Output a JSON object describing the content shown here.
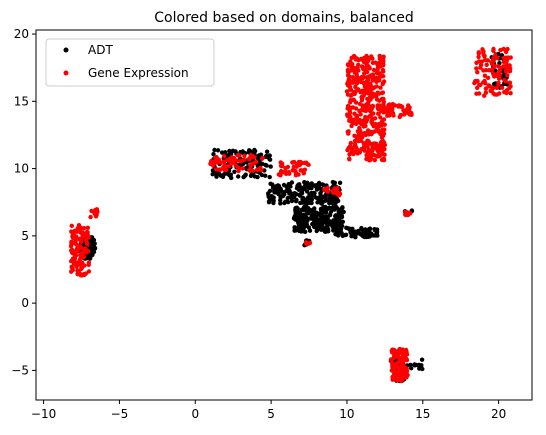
{
  "chart_data": {
    "type": "scatter",
    "title": "Colored based on domains, balanced",
    "xlabel": "",
    "ylabel": "",
    "xlim": [
      -10.5,
      22.2
    ],
    "ylim": [
      -7.2,
      20.3
    ],
    "x_ticks": [
      -10,
      -5,
      0,
      5,
      10,
      15,
      20
    ],
    "y_ticks": [
      -5,
      0,
      5,
      10,
      15,
      20
    ],
    "grid": false,
    "legend_position": "top-left",
    "series": [
      {
        "name": "ADT",
        "color": "#000000",
        "clusters": [
          {
            "x": [
              -7.6,
              -6.6
            ],
            "y": [
              3.3,
              4.9
            ],
            "n": 90
          },
          {
            "x": [
              1.1,
              5.0
            ],
            "y": [
              9.3,
              11.4
            ],
            "n": 120
          },
          {
            "x": [
              4.8,
              9.6
            ],
            "y": [
              7.4,
              9.0
            ],
            "n": 200
          },
          {
            "x": [
              6.5,
              9.8
            ],
            "y": [
              5.3,
              7.2
            ],
            "n": 240
          },
          {
            "x": [
              9.2,
              12.0
            ],
            "y": [
              4.9,
              5.6
            ],
            "n": 80
          },
          {
            "x": [
              7.2,
              7.6
            ],
            "y": [
              4.3,
              4.7
            ],
            "n": 10
          },
          {
            "x": [
              12.8,
              15.0
            ],
            "y": [
              -4.9,
              -4.1
            ],
            "n": 40
          },
          {
            "x": [
              13.0,
              13.8
            ],
            "y": [
              -5.8,
              -4.2
            ],
            "n": 30
          },
          {
            "x": [
              13.8,
              14.3
            ],
            "y": [
              6.6,
              6.9
            ],
            "n": 8
          },
          {
            "x": [
              19.5,
              20.6
            ],
            "y": [
              16.0,
              18.6
            ],
            "n": 40
          }
        ]
      },
      {
        "name": "Gene Expression",
        "color": "#ff0000",
        "clusters": [
          {
            "x": [
              -8.2,
              -7.0
            ],
            "y": [
              2.0,
              5.8
            ],
            "n": 120
          },
          {
            "x": [
              -6.9,
              -6.4
            ],
            "y": [
              6.3,
              7.0
            ],
            "n": 12
          },
          {
            "x": [
              1.0,
              4.5
            ],
            "y": [
              9.8,
              11.0
            ],
            "n": 70
          },
          {
            "x": [
              5.5,
              7.5
            ],
            "y": [
              9.5,
              10.5
            ],
            "n": 40
          },
          {
            "x": [
              8.5,
              9.6
            ],
            "y": [
              7.9,
              8.6
            ],
            "n": 15
          },
          {
            "x": [
              7.2,
              7.6
            ],
            "y": [
              4.4,
              4.6
            ],
            "n": 6
          },
          {
            "x": [
              10.0,
              12.5
            ],
            "y": [
              10.6,
              18.4
            ],
            "n": 420
          },
          {
            "x": [
              12.5,
              14.3
            ],
            "y": [
              13.8,
              14.8
            ],
            "n": 40
          },
          {
            "x": [
              13.8,
              14.2
            ],
            "y": [
              6.5,
              6.8
            ],
            "n": 10
          },
          {
            "x": [
              12.9,
              14.0
            ],
            "y": [
              -5.8,
              -3.4
            ],
            "n": 120
          },
          {
            "x": [
              18.4,
              20.8
            ],
            "y": [
              15.4,
              18.9
            ],
            "n": 110
          }
        ]
      }
    ]
  }
}
